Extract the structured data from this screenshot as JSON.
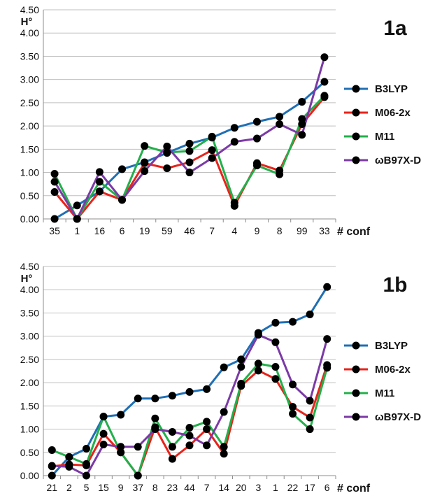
{
  "chart_data": [
    {
      "type": "line",
      "title": "1a",
      "ylabel": "H°",
      "xlabel": "# conf",
      "ylim": [
        0,
        4.5
      ],
      "yticks": [
        "0.00",
        "0.50",
        "1.00",
        "1.50",
        "2.00",
        "2.50",
        "3.00",
        "3.50",
        "4.00",
        "4.50"
      ],
      "grid": true,
      "legend_position": "right",
      "categories": [
        "35",
        "1",
        "16",
        "6",
        "19",
        "59",
        "46",
        "7",
        "4",
        "9",
        "8",
        "99",
        "33"
      ],
      "series": [
        {
          "name": "B3LYP",
          "color": "#1f6fb5",
          "values": [
            0.0,
            0.29,
            0.59,
            1.07,
            1.22,
            1.42,
            1.62,
            1.75,
            1.96,
            2.09,
            2.2,
            2.52,
            2.95
          ]
        },
        {
          "name": "M06-2x",
          "color": "#e8231b",
          "values": [
            0.58,
            0.0,
            0.59,
            0.41,
            1.2,
            1.09,
            1.22,
            1.48,
            0.28,
            1.2,
            1.04,
            2.04,
            2.62
          ]
        },
        {
          "name": "M11",
          "color": "#22b04b",
          "values": [
            0.97,
            0.0,
            0.8,
            0.41,
            1.57,
            1.43,
            1.46,
            1.77,
            0.35,
            1.15,
            0.96,
            2.15,
            2.65
          ]
        },
        {
          "name": "ωB97X-D",
          "color": "#7b3aa6",
          "values": [
            0.8,
            0.0,
            1.01,
            0.41,
            1.03,
            1.56,
            1.0,
            1.31,
            1.66,
            1.73,
            2.04,
            1.81,
            3.48
          ]
        }
      ]
    },
    {
      "type": "line",
      "title": "1b",
      "ylabel": "H°",
      "xlabel": "# conf",
      "ylim": [
        0,
        4.5
      ],
      "yticks": [
        "0.00",
        "0.50",
        "1.00",
        "1.50",
        "2.00",
        "2.50",
        "3.00",
        "3.50",
        "4.00",
        "4.50"
      ],
      "grid": true,
      "legend_position": "right",
      "categories": [
        "21",
        "2",
        "5",
        "15",
        "9",
        "37",
        "8",
        "23",
        "44",
        "7",
        "14",
        "20",
        "3",
        "1",
        "22",
        "17",
        "6"
      ],
      "series": [
        {
          "name": "B3LYP",
          "color": "#1f6fb5",
          "values": [
            0.0,
            0.4,
            0.58,
            1.27,
            1.31,
            1.66,
            1.66,
            1.72,
            1.8,
            1.86,
            2.33,
            2.5,
            3.07,
            3.29,
            3.31,
            3.47,
            4.06
          ]
        },
        {
          "name": "M06-2x",
          "color": "#e8231b",
          "values": [
            0.2,
            0.24,
            0.22,
            0.9,
            0.5,
            0.0,
            1.04,
            0.36,
            0.65,
            1.0,
            0.47,
            1.93,
            2.26,
            2.08,
            1.48,
            1.25,
            2.38
          ]
        },
        {
          "name": "M11",
          "color": "#22b04b",
          "values": [
            0.55,
            0.4,
            0.25,
            1.27,
            0.5,
            0.0,
            1.23,
            0.62,
            1.03,
            1.16,
            0.62,
            1.98,
            2.41,
            2.34,
            1.33,
            1.0,
            2.32
          ]
        },
        {
          "name": "ωB97X-D",
          "color": "#7b3aa6",
          "values": [
            0.21,
            0.19,
            0.0,
            0.67,
            0.62,
            0.62,
            1.0,
            0.94,
            0.86,
            0.65,
            1.37,
            2.34,
            3.03,
            2.87,
            1.96,
            1.61,
            2.94
          ]
        }
      ]
    }
  ]
}
